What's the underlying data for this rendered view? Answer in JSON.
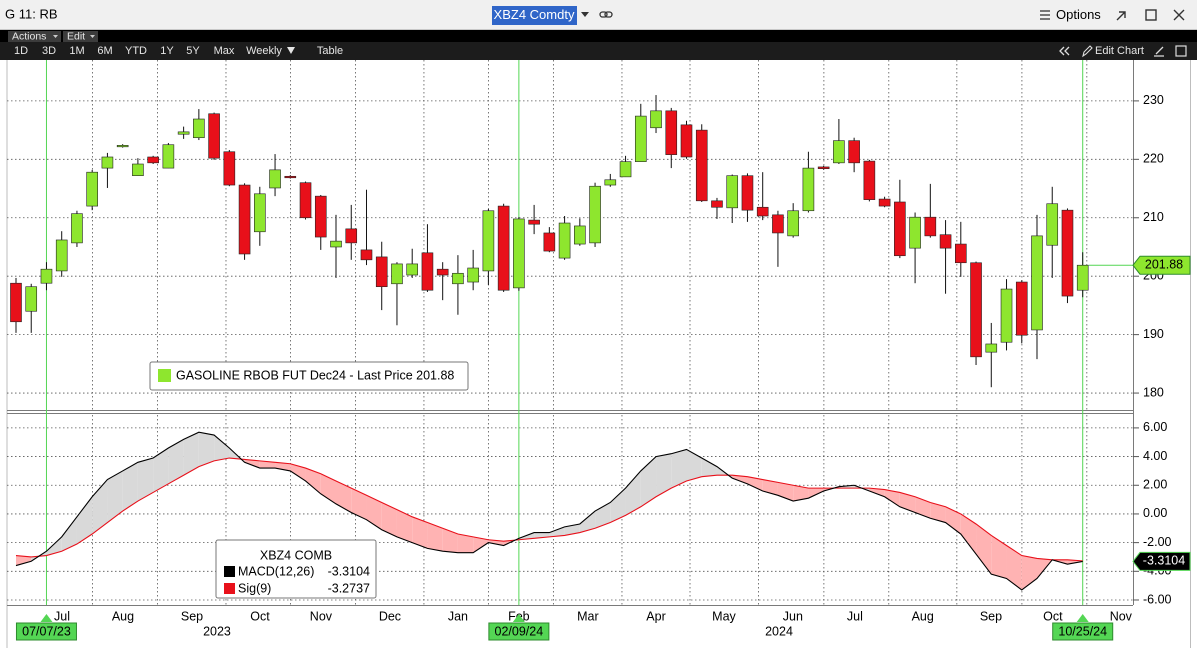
{
  "header": {
    "window": "G 11: RB",
    "ticker": "XBZ4 Comdty",
    "options": "Options"
  },
  "toolbar": {
    "menus": [
      "Actions",
      "Edit"
    ],
    "ranges": [
      "1D",
      "3D",
      "1M",
      "6M",
      "YTD",
      "1Y",
      "5Y",
      "Max"
    ],
    "period": "Weekly",
    "table": "Table",
    "edit_chart": "Edit Chart"
  },
  "chart_data": [
    {
      "type": "candlestick",
      "categories": [
        null,
        null,
        "07/07/23",
        null,
        null,
        null,
        null,
        null,
        null,
        null,
        null,
        null,
        null,
        null,
        null,
        null,
        null,
        null,
        null,
        null,
        null,
        null,
        null,
        null,
        null,
        null,
        null,
        null,
        null,
        null,
        null,
        null,
        null,
        "02/09/24",
        null,
        null,
        null,
        null,
        null,
        null,
        null,
        null,
        null,
        null,
        null,
        null,
        null,
        null,
        null,
        null,
        null,
        null,
        null,
        null,
        null,
        null,
        null,
        null,
        null,
        null,
        null,
        null,
        null,
        null,
        null,
        null,
        null,
        null,
        null,
        null,
        "10/25/24"
      ],
      "series": [
        {
          "name": "GASOLINE RBOB FUT Dec24 - Last Price 201.88",
          "up_color": "#8ee62e",
          "down_color": "#e8101a",
          "open": [
            198.8,
            194.0,
            198.8,
            200.9,
            205.7,
            212.0,
            218.5,
            222.2,
            217.2,
            220.4,
            218.5,
            224.3,
            223.7,
            227.8,
            221.3,
            215.6,
            207.6,
            215.1,
            217.1,
            216.0,
            213.7,
            205.0,
            208.1,
            204.5,
            203.3,
            198.7,
            200.2,
            204.0,
            201.2,
            198.7,
            199.0,
            200.9,
            212.0,
            198.0,
            209.6,
            207.4,
            203.1,
            205.5,
            205.7,
            215.6,
            217.0,
            219.6,
            225.4,
            228.3,
            225.9,
            225.0,
            212.9,
            211.7,
            217.2,
            211.8,
            210.5,
            206.9,
            211.2,
            218.7,
            219.4,
            223.2,
            219.7,
            213.2,
            212.7,
            204.8,
            210.1,
            207.1,
            205.5,
            202.3,
            187.0,
            188.7,
            199.0,
            190.8,
            205.3,
            211.3,
            197.6
          ],
          "high": [
            199.7,
            198.7,
            202.4,
            207.7,
            211.2,
            218.2,
            221.1,
            222.6,
            220.2,
            220.6,
            222.8,
            225.6,
            228.6,
            228.0,
            221.6,
            215.9,
            215.3,
            220.9,
            217.3,
            216.2,
            213.9,
            210.5,
            212.2,
            214.8,
            205.9,
            202.4,
            204.7,
            208.9,
            202.4,
            203.6,
            204.5,
            211.5,
            212.4,
            210.1,
            212.2,
            208.4,
            210.3,
            209.9,
            216.0,
            217.5,
            220.6,
            229.5,
            231.0,
            228.8,
            226.6,
            226.0,
            213.4,
            217.4,
            217.6,
            217.8,
            211.2,
            212.5,
            221.3,
            218.9,
            226.9,
            223.7,
            219.9,
            213.6,
            216.5,
            210.9,
            215.8,
            209.6,
            209.3,
            202.5,
            192.0,
            199.5,
            199.3,
            210.5,
            215.3,
            211.6,
            204.1
          ],
          "low": [
            190.3,
            190.3,
            197.6,
            199.9,
            205.0,
            211.3,
            215.1,
            222.0,
            217.2,
            219.2,
            218.5,
            223.5,
            223.3,
            219.9,
            215.4,
            202.8,
            205.2,
            213.7,
            216.7,
            209.7,
            204.5,
            199.7,
            202.8,
            201.9,
            194.2,
            191.6,
            199.7,
            197.3,
            195.9,
            193.4,
            197.6,
            198.5,
            197.3,
            197.5,
            207.2,
            204.1,
            202.8,
            205.2,
            205.0,
            215.3,
            217.0,
            219.6,
            224.5,
            218.5,
            220.1,
            212.7,
            209.8,
            209.1,
            209.3,
            209.6,
            201.6,
            206.6,
            210.9,
            218.2,
            219.2,
            217.8,
            212.8,
            211.8,
            203.1,
            198.8,
            206.6,
            197.0,
            199.9,
            184.8,
            181.0,
            187.3,
            188.5,
            185.8,
            199.7,
            195.4,
            196.4
          ],
          "close": [
            192.2,
            198.2,
            201.2,
            206.2,
            210.7,
            217.8,
            220.4,
            222.4,
            219.2,
            219.4,
            222.5,
            224.7,
            226.9,
            220.2,
            215.6,
            203.8,
            214.1,
            218.2,
            216.9,
            210.0,
            206.7,
            206.0,
            205.7,
            202.8,
            198.2,
            202.1,
            202.1,
            197.6,
            200.2,
            200.5,
            201.4,
            211.2,
            197.6,
            209.8,
            208.9,
            204.3,
            209.1,
            208.6,
            215.4,
            216.5,
            219.6,
            227.4,
            228.3,
            220.8,
            220.4,
            212.9,
            211.8,
            217.2,
            211.3,
            210.3,
            207.4,
            211.2,
            218.5,
            218.4,
            223.2,
            219.4,
            213.1,
            212.0,
            203.5,
            210.1,
            206.9,
            204.8,
            202.3,
            186.2,
            188.4,
            197.8,
            189.9,
            206.9,
            212.4,
            196.6,
            201.88
          ]
        }
      ],
      "xlim": [
        -0.59,
        73.3
      ],
      "ylim": [
        177.1,
        237.0
      ],
      "yticks": [
        180,
        190,
        200,
        210,
        220,
        230
      ],
      "grid": true
    },
    {
      "type": "line",
      "legend_title": "XBZ4 COMB",
      "series": [
        {
          "name": "MACD(12,26)",
          "color": "#000000",
          "values": [
            -3.6,
            -3.3,
            -2.6,
            -1.6,
            -0.2,
            1.2,
            2.4,
            3.0,
            3.6,
            3.9,
            4.6,
            5.2,
            5.7,
            5.5,
            4.6,
            3.6,
            3.2,
            3.2,
            3.0,
            2.3,
            1.4,
            0.7,
            0.1,
            -0.4,
            -1.1,
            -1.6,
            -2.0,
            -2.4,
            -2.6,
            -2.7,
            -2.7,
            -2.0,
            -2.2,
            -1.7,
            -1.3,
            -1.3,
            -0.9,
            -0.7,
            0.2,
            0.8,
            1.8,
            3.0,
            4.0,
            4.2,
            4.5,
            3.9,
            3.3,
            2.5,
            2.1,
            1.6,
            1.3,
            0.9,
            1.1,
            1.6,
            1.9,
            2.0,
            1.6,
            1.2,
            0.5,
            0.1,
            -0.3,
            -0.6,
            -1.4,
            -2.8,
            -4.2,
            -4.5,
            -5.3,
            -4.5,
            -3.2,
            -3.5,
            -3.3104
          ]
        },
        {
          "name": "Sig(9)",
          "color": "#e8101a",
          "values": [
            -2.9,
            -3.0,
            -2.9,
            -2.6,
            -2.1,
            -1.4,
            -0.6,
            0.2,
            0.9,
            1.5,
            2.1,
            2.7,
            3.3,
            3.7,
            3.9,
            3.8,
            3.7,
            3.6,
            3.5,
            3.2,
            2.8,
            2.3,
            1.8,
            1.3,
            0.8,
            0.3,
            -0.2,
            -0.6,
            -1.0,
            -1.4,
            -1.6,
            -1.8,
            -1.9,
            -1.8,
            -1.7,
            -1.6,
            -1.5,
            -1.3,
            -1.0,
            -0.6,
            -0.1,
            0.5,
            1.2,
            1.8,
            2.3,
            2.6,
            2.7,
            2.7,
            2.6,
            2.4,
            2.2,
            2.0,
            1.8,
            1.8,
            1.8,
            1.8,
            1.8,
            1.7,
            1.5,
            1.2,
            0.8,
            0.5,
            0.0,
            -0.7,
            -1.5,
            -2.2,
            -2.9,
            -3.1,
            -3.2,
            -3.2,
            -3.2737
          ]
        }
      ],
      "fill_above": "#d9d9d9",
      "fill_below": "#ffb3b3",
      "xlim": [
        -0.59,
        73.3
      ],
      "ylim": [
        -6.35,
        6.9
      ],
      "yticks": [
        {
          "value": 6,
          "label": "6.00"
        },
        {
          "value": 4,
          "label": "4.00"
        },
        {
          "value": 2,
          "label": "2.00"
        },
        {
          "value": 0,
          "label": "0.00"
        },
        {
          "value": -2,
          "label": "-2.00"
        },
        {
          "value": -4,
          "label": "-4.00"
        },
        {
          "value": -6,
          "label": "-6.00"
        }
      ],
      "xticks": [
        {
          "value": 3.02,
          "label": "Jul"
        },
        {
          "value": 7.02,
          "label": "Aug"
        },
        {
          "value": 11.55,
          "label": "Sep"
        },
        {
          "value": 16.01,
          "label": "Oct"
        },
        {
          "value": 20.01,
          "label": "Nov"
        },
        {
          "value": 24.54,
          "label": "Dec"
        },
        {
          "value": 29.0,
          "label": "Jan"
        },
        {
          "value": 33.0,
          "label": "Feb"
        },
        {
          "value": 37.53,
          "label": "Mar"
        },
        {
          "value": 42.0,
          "label": "Apr"
        },
        {
          "value": 46.46,
          "label": "May"
        },
        {
          "value": 50.98,
          "label": "Jun"
        },
        {
          "value": 55.05,
          "label": "Jul"
        },
        {
          "value": 59.5,
          "label": "Aug"
        },
        {
          "value": 63.98,
          "label": "Sep"
        },
        {
          "value": 68.04,
          "label": "Oct"
        },
        {
          "value": 72.5,
          "label": "Nov"
        }
      ],
      "year_ticks": [
        {
          "value": 13.19,
          "label": "2023"
        },
        {
          "value": 50.07,
          "label": "2024"
        }
      ],
      "grid": true
    }
  ]
}
